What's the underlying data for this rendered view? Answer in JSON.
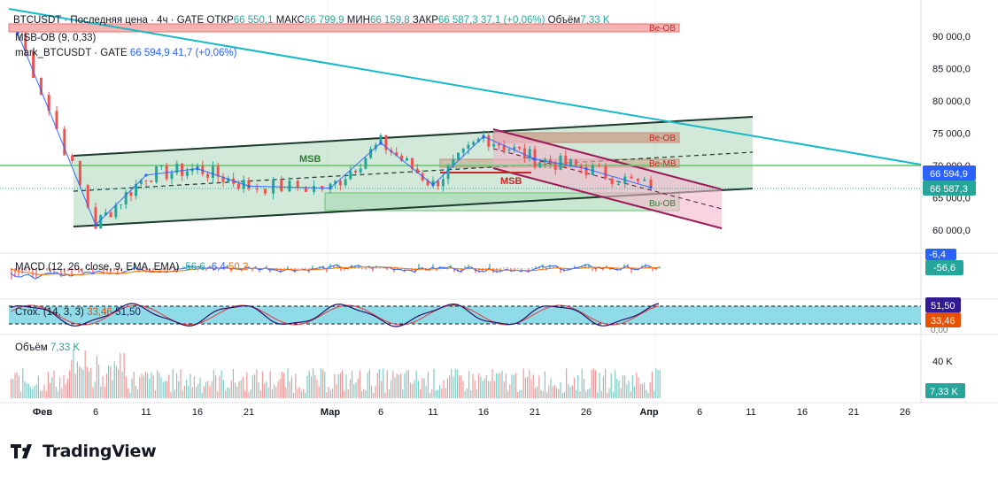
{
  "colors": {
    "up": "#26a69a",
    "down": "#ef5350",
    "channel_outline": "#1b3a2c",
    "channel_fill": "#7fbf95",
    "cyan_line": "#17b8c8",
    "green_line": "#63c36b",
    "magenta": "#9c1b59",
    "pink_fill": "#f4b6cc",
    "macd": "#2962ff",
    "signal": "#ff6d00",
    "stoch_fill": "#8fdbe8",
    "stoch_k": "#2a0f6a",
    "stoch_d": "#e53935"
  },
  "legend": {
    "line1_prefix": "BTCUSDT · Последняя цена · 4ч · GATE",
    "open_label": "ОТКР",
    "open_value": "66 550,1",
    "high_label": "МАКС",
    "high_value": "66 799,9",
    "low_label": "МИН",
    "low_value": "66 159,8",
    "close_label": "ЗАКР",
    "close_value": "66 587,3",
    "change_value": "37,1 (+0,06%)",
    "volume_label": "Объём",
    "volume_value": "7,33 K",
    "indicator": "MSB-OB (9, 0,33)",
    "mark_label": "mark_BTCUSDT · GATE",
    "mark_value": "66 594,9",
    "mark_change": "41,7 (+0,06%)"
  },
  "annotations": {
    "be_ob_top": "Be-OB",
    "be_ob_mid": "Be-OB",
    "be_ob_lower": "Be-MB",
    "bu_ob": "Bu-OB",
    "msb_left": "MSB",
    "msb_right": "MSB"
  },
  "price_axis": {
    "ticks": [
      "90 000,0",
      "85 000,0",
      "80 000,0",
      "75 000,0",
      "70 000,0",
      "65 000,0",
      "60 000,0"
    ],
    "mark_badge": "66 594,9",
    "close_badge": "66 587,3"
  },
  "macd": {
    "label": "MACD (12, 26, close, 9, EMA, EMA)",
    "hist": "-56,6",
    "macd": "-6,4",
    "signal": "50,2",
    "badge_top": "-6,4",
    "badge_bottom": "-56,6"
  },
  "stoch": {
    "label": "Стох. (14, 3, 3)",
    "k": "33,46",
    "d": "51,50",
    "badge_d": "51,50",
    "badge_k": "33,46",
    "axis_label": "0,00"
  },
  "volume": {
    "label": "Объём",
    "value": "7,33 K",
    "axis_tick": "40 K",
    "badge": "7,33 K"
  },
  "time_axis": [
    "Фев",
    "6",
    "11",
    "16",
    "21",
    "Мар",
    "6",
    "11",
    "16",
    "21",
    "26",
    "Апр",
    "6",
    "11",
    "16",
    "21",
    "26"
  ],
  "brand": "TradingView",
  "chart_data": {
    "type": "line",
    "title": "BTCUSDT · Последняя цена · 4ч · GATE",
    "x": [
      "Фев",
      "6",
      "11",
      "16",
      "21",
      "Мар",
      "6",
      "11",
      "16",
      "21",
      "26",
      "Апр"
    ],
    "series": [
      {
        "name": "BTCUSDT",
        "values": [
          90500,
          60800,
          68500,
          69500,
          66800,
          66500,
          73500,
          67000,
          74500,
          71000,
          69500,
          66587
        ]
      }
    ],
    "ylim": [
      59000,
      92000
    ],
    "ytick_labels": [
      "90 000,0",
      "85 000,0",
      "80 000,0",
      "75 000,0",
      "70 000,0",
      "65 000,0",
      "60 000,0"
    ],
    "last_close": 66587.3,
    "last_mark": 66594.9,
    "volume_last": "7,33 K"
  }
}
